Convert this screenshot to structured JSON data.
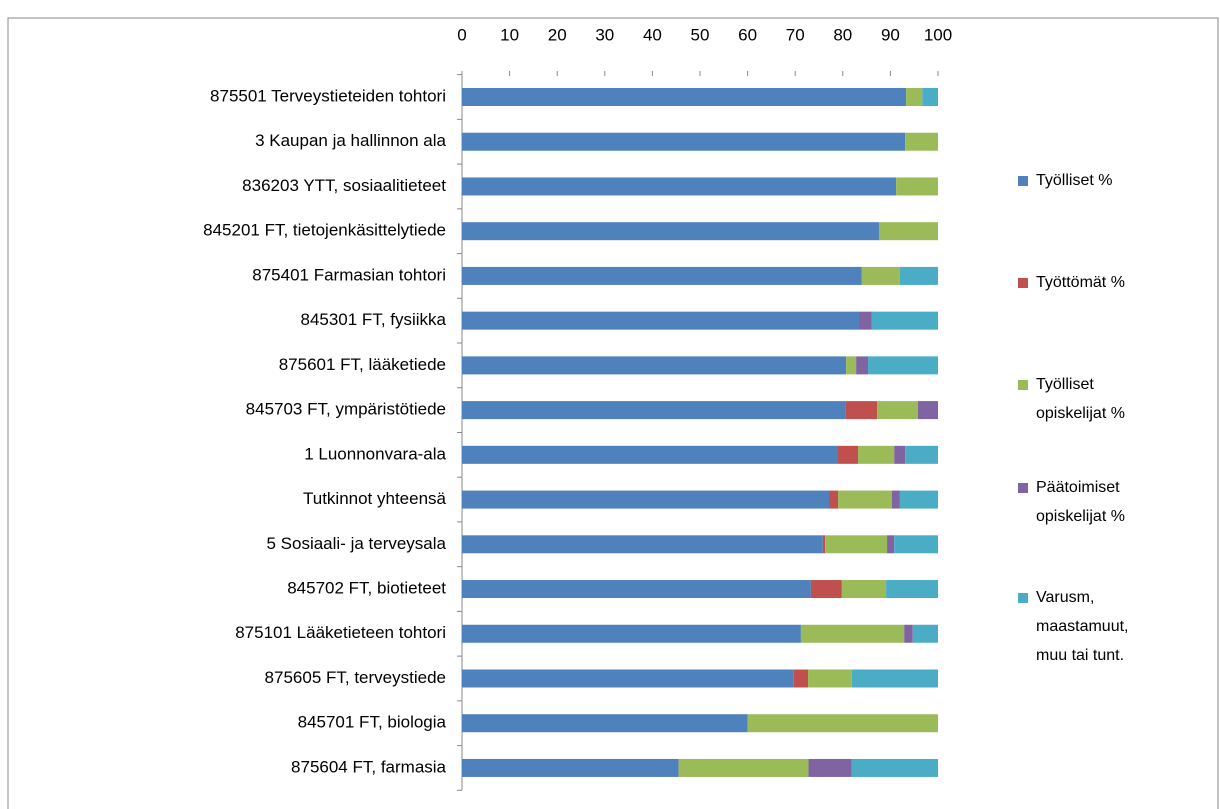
{
  "chart_data": {
    "type": "stacked-bar-horizontal",
    "categories": [
      "875501 Terveystieteiden tohtori",
      "3 Kaupan ja hallinnon ala",
      "836203 YTT, sosiaalitieteet",
      "845201 FT, tietojenkäsittelytiede",
      "875401 Farmasian tohtori",
      "845301 FT, fysiikka",
      "875601 FT, lääketiede",
      "845703 FT, ympäristötiede",
      "1 Luonnonvara-ala",
      "Tutkinnot yhteensä",
      "5 Sosiaali- ja terveysala",
      "845702 FT, biotieteet",
      "875101 Lääketieteen tohtori",
      "875605 FT, terveystiede",
      "845701 FT, biologia",
      "875604 FT, farmasia"
    ],
    "series": [
      {
        "name": "Työlliset %",
        "color": "#4f81bd",
        "values": [
          93.3,
          93.1,
          91.2,
          87.6,
          84.0,
          83.4,
          80.7,
          80.5,
          78.8,
          77.1,
          75.8,
          73.3,
          71.2,
          69.7,
          60.0,
          45.5
        ]
      },
      {
        "name": "Työttömät %",
        "color": "#c0504d",
        "values": [
          0,
          0,
          0,
          0,
          0,
          0,
          0,
          6.7,
          4.4,
          1.9,
          0.5,
          6.5,
          0,
          3.0,
          0,
          0
        ]
      },
      {
        "name": "Työlliset opiskelijat %",
        "color": "#9bbb59",
        "values": [
          3.4,
          6.9,
          8.8,
          12.4,
          8.0,
          0,
          2.1,
          8.6,
          7.6,
          11.3,
          13.0,
          9.3,
          21.7,
          9.2,
          40.0,
          27.3
        ]
      },
      {
        "name": "Päätoimiset opiskelijat %",
        "color": "#8064a2",
        "values": [
          0,
          0,
          0,
          0,
          0,
          2.7,
          2.5,
          4.2,
          2.3,
          1.7,
          1.5,
          0,
          1.8,
          0,
          0,
          9.1
        ]
      },
      {
        "name": "Varusm, maastamuut, muu tai tunt.",
        "color": "#4bacc6",
        "values": [
          3.3,
          0,
          0,
          0,
          8.0,
          13.9,
          14.7,
          0,
          6.9,
          8.0,
          9.2,
          10.9,
          5.3,
          18.1,
          0,
          18.1
        ]
      }
    ],
    "xlim": [
      0,
      100
    ],
    "xticks": [
      0,
      10,
      20,
      30,
      40,
      50,
      60,
      70,
      80,
      90,
      100
    ],
    "legend": "right"
  }
}
